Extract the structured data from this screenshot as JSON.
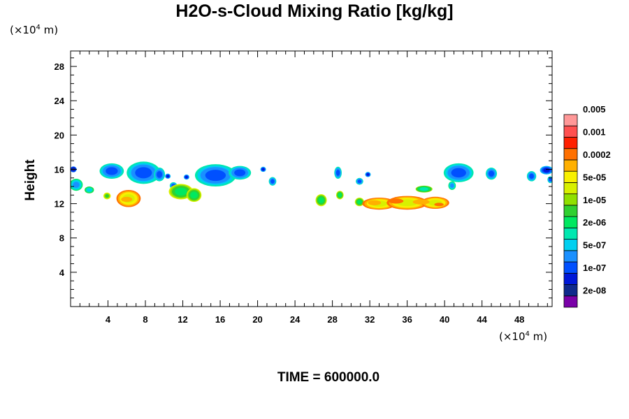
{
  "chart_data": {
    "type": "heatmap",
    "title": "H2O-s-Cloud Mixing Ratio [kg/kg]",
    "ylabel": "Height",
    "xunit_prefix": "(×10",
    "xunit_exp": "4",
    "xunit_suffix": " m)",
    "yunit_prefix": "(×10",
    "yunit_exp": "4",
    "yunit_suffix": " m)",
    "time_label": "TIME = 600000.0",
    "xlim": [
      0,
      51.5
    ],
    "ylim": [
      0,
      29.8
    ],
    "xticks": [
      4,
      8,
      12,
      16,
      20,
      24,
      28,
      32,
      36,
      40,
      44,
      48
    ],
    "yticks": [
      4,
      8,
      12,
      16,
      20,
      24,
      28
    ],
    "colorbar": {
      "colors": [
        "#7a00a8",
        "#102a8c",
        "#0018d8",
        "#0050ff",
        "#1a90ff",
        "#00d0f0",
        "#00e8b0",
        "#00e860",
        "#30d030",
        "#90e000",
        "#d8f000",
        "#f8f000",
        "#ffb000",
        "#ff7000",
        "#ff2000",
        "#ff5050",
        "#ff9898"
      ],
      "labels": [
        "2e-08",
        "1e-07",
        "5e-07",
        "2e-06",
        "1e-05",
        "5e-05",
        "0.0002",
        "0.001",
        "0.005"
      ]
    },
    "regions": [
      {
        "x": 0.3,
        "y": 16.0,
        "rx": 0.35,
        "ry": 0.35,
        "level": 2
      },
      {
        "x": 0.6,
        "y": 14.2,
        "rx": 0.7,
        "ry": 0.7,
        "level": 5
      },
      {
        "x": 2.0,
        "y": 13.6,
        "rx": 0.5,
        "ry": 0.4,
        "level": 6
      },
      {
        "x": 3.9,
        "y": 12.9,
        "rx": 0.4,
        "ry": 0.4,
        "level": 9
      },
      {
        "x": 4.4,
        "y": 15.8,
        "rx": 1.3,
        "ry": 0.9,
        "level": 4
      },
      {
        "x": 6.2,
        "y": 12.6,
        "rx": 1.3,
        "ry": 1.0,
        "level": 11
      },
      {
        "x": 7.8,
        "y": 15.6,
        "rx": 1.8,
        "ry": 1.3,
        "level": 4
      },
      {
        "x": 9.5,
        "y": 15.4,
        "rx": 0.6,
        "ry": 0.8,
        "level": 4
      },
      {
        "x": 10.4,
        "y": 15.2,
        "rx": 0.3,
        "ry": 0.3,
        "level": 3
      },
      {
        "x": 11.0,
        "y": 14.1,
        "rx": 0.4,
        "ry": 0.4,
        "level": 4
      },
      {
        "x": 11.8,
        "y": 13.4,
        "rx": 1.3,
        "ry": 0.9,
        "level": 8
      },
      {
        "x": 12.4,
        "y": 15.1,
        "rx": 0.3,
        "ry": 0.3,
        "level": 3
      },
      {
        "x": 13.2,
        "y": 13.0,
        "rx": 0.8,
        "ry": 0.8,
        "level": 8
      },
      {
        "x": 15.5,
        "y": 15.3,
        "rx": 2.2,
        "ry": 1.3,
        "level": 4
      },
      {
        "x": 18.1,
        "y": 15.6,
        "rx": 1.2,
        "ry": 0.8,
        "level": 4
      },
      {
        "x": 20.6,
        "y": 16.0,
        "rx": 0.3,
        "ry": 0.3,
        "level": 3
      },
      {
        "x": 21.6,
        "y": 14.6,
        "rx": 0.4,
        "ry": 0.5,
        "level": 4
      },
      {
        "x": 26.8,
        "y": 12.4,
        "rx": 0.6,
        "ry": 0.7,
        "level": 8
      },
      {
        "x": 28.6,
        "y": 15.6,
        "rx": 0.4,
        "ry": 0.7,
        "level": 4
      },
      {
        "x": 28.8,
        "y": 13.0,
        "rx": 0.4,
        "ry": 0.5,
        "level": 8
      },
      {
        "x": 30.9,
        "y": 14.6,
        "rx": 0.4,
        "ry": 0.4,
        "level": 4
      },
      {
        "x": 31.8,
        "y": 15.4,
        "rx": 0.3,
        "ry": 0.3,
        "level": 3
      },
      {
        "x": 30.9,
        "y": 12.2,
        "rx": 0.5,
        "ry": 0.5,
        "level": 8
      },
      {
        "x": 33.0,
        "y": 12.0,
        "rx": 1.8,
        "ry": 0.7,
        "level": 11
      },
      {
        "x": 36.0,
        "y": 12.1,
        "rx": 2.2,
        "ry": 0.8,
        "level": 11
      },
      {
        "x": 39.0,
        "y": 12.1,
        "rx": 1.5,
        "ry": 0.7,
        "level": 11
      },
      {
        "x": 37.8,
        "y": 13.7,
        "rx": 0.9,
        "ry": 0.4,
        "level": 7
      },
      {
        "x": 41.5,
        "y": 15.6,
        "rx": 1.6,
        "ry": 1.1,
        "level": 4
      },
      {
        "x": 40.8,
        "y": 14.1,
        "rx": 0.4,
        "ry": 0.5,
        "level": 5
      },
      {
        "x": 45.0,
        "y": 15.5,
        "rx": 0.6,
        "ry": 0.7,
        "level": 4
      },
      {
        "x": 49.3,
        "y": 15.2,
        "rx": 0.5,
        "ry": 0.6,
        "level": 4
      },
      {
        "x": 50.9,
        "y": 15.9,
        "rx": 0.7,
        "ry": 0.5,
        "level": 3
      },
      {
        "x": 51.3,
        "y": 14.8,
        "rx": 0.3,
        "ry": 0.4,
        "level": 4
      }
    ],
    "highlights": [
      {
        "x": 32.5,
        "y": 12.1,
        "rx": 0.7,
        "ry": 0.3,
        "level": 12
      },
      {
        "x": 34.8,
        "y": 12.3,
        "rx": 0.8,
        "ry": 0.3,
        "level": 13
      },
      {
        "x": 37.5,
        "y": 12.2,
        "rx": 0.9,
        "ry": 0.3,
        "level": 12
      },
      {
        "x": 39.4,
        "y": 11.9,
        "rx": 0.5,
        "ry": 0.2,
        "level": 13
      },
      {
        "x": 6.0,
        "y": 12.5,
        "rx": 0.6,
        "ry": 0.3,
        "level": 12
      }
    ]
  }
}
